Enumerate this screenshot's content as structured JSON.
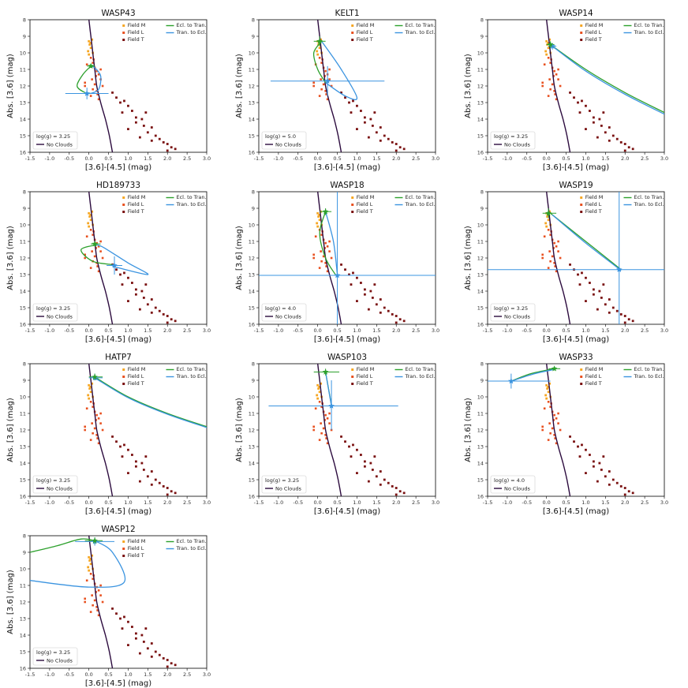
{
  "figure": {
    "xlabel": "[3.6]-[4.5] (mag)",
    "ylabel": "Abs. [3.6] (mag)",
    "legend_field_labels": [
      "Field M",
      "Field L",
      "Field T"
    ],
    "legend_track_labels": [
      "Ecl. to Tran.",
      "Tran. to Ecl."
    ],
    "no_clouds_label": "No Clouds",
    "colors": {
      "field_m": "#f5a623",
      "field_l": "#e8501f",
      "field_t": "#7a1010",
      "model": "#2b0a3d",
      "ecl_to_tran": "#2ca02c",
      "tran_to_ecl": "#3b94e0"
    }
  },
  "chart_data": [
    {
      "type": "scatter",
      "title": "WASP43",
      "logg_label": "log(g) = 3.25",
      "xlim": [
        -1.5,
        3.0
      ],
      "ylim": [
        16,
        8
      ],
      "xticks": [
        -1.5,
        -1.0,
        -0.5,
        0.0,
        0.5,
        1.0,
        1.5,
        2.0,
        2.5,
        3.0
      ],
      "yticks": [
        8,
        9,
        10,
        11,
        12,
        13,
        14,
        15,
        16
      ],
      "ecl": [
        [
          0.05,
          10.8
        ],
        [
          -0.15,
          11.3
        ],
        [
          -0.3,
          12.0
        ],
        [
          -0.1,
          12.4
        ],
        [
          0.05,
          12.45
        ]
      ],
      "tran": [
        [
          0.05,
          12.45
        ],
        [
          0.25,
          12.2
        ],
        [
          0.3,
          11.4
        ],
        [
          0.15,
          10.9
        ],
        [
          0.05,
          10.8
        ]
      ],
      "ecl_point": [
        0.05,
        10.8
      ],
      "tran_point": [
        -0.05,
        12.45
      ],
      "tran_err": {
        "x": [
          -0.6,
          0.5
        ],
        "y": [
          12.1,
          12.8
        ]
      },
      "ecl_err": {
        "x": [
          -0.05,
          0.15
        ],
        "y": [
          10.7,
          10.9
        ]
      }
    },
    {
      "type": "scatter",
      "title": "KELT1",
      "logg_label": "log(g) = 5.0",
      "xlim": [
        -1.5,
        3.0
      ],
      "ylim": [
        16,
        8
      ],
      "xticks": [
        -1.5,
        -1.0,
        -0.5,
        0.0,
        0.5,
        1.0,
        1.5,
        2.0,
        2.5,
        3.0
      ],
      "yticks": [
        8,
        9,
        10,
        11,
        12,
        13,
        14,
        15,
        16
      ],
      "ecl": [
        [
          0.1,
          9.3
        ],
        [
          -0.1,
          10.0
        ],
        [
          0.0,
          11.0
        ],
        [
          0.2,
          11.8
        ]
      ],
      "tran": [
        [
          0.2,
          11.8
        ],
        [
          0.7,
          12.6
        ],
        [
          1.0,
          12.7
        ],
        [
          0.6,
          11.0
        ],
        [
          0.1,
          9.3
        ]
      ],
      "ecl_point": [
        0.05,
        9.3
      ],
      "tran_point": [
        0.25,
        11.7
      ],
      "tran_err": {
        "x": [
          -1.2,
          1.7
        ],
        "y": [
          10.8,
          12.6
        ]
      },
      "ecl_err": {
        "x": [
          -0.1,
          0.2
        ],
        "y": [
          9.0,
          9.6
        ]
      }
    },
    {
      "type": "scatter",
      "title": "WASP14",
      "logg_label": "log(g) = 3.25",
      "xlim": [
        -1.5,
        3.0
      ],
      "ylim": [
        16,
        8
      ],
      "xticks": [
        -1.5,
        -1.0,
        -0.5,
        0.0,
        0.5,
        1.0,
        1.5,
        2.0,
        2.5,
        3.0
      ],
      "yticks": [
        8,
        9,
        10,
        11,
        12,
        13,
        14,
        15,
        16
      ],
      "ecl": [
        [
          0.1,
          9.5
        ],
        [
          1.0,
          11.0
        ],
        [
          2.0,
          12.4
        ],
        [
          3.0,
          13.6
        ]
      ],
      "tran": [
        [
          0.15,
          9.6
        ],
        [
          1.0,
          11.1
        ],
        [
          2.0,
          12.5
        ],
        [
          3.0,
          13.7
        ]
      ],
      "ecl_point": [
        0.1,
        9.5
      ],
      "tran_point": [
        0.15,
        9.6
      ],
      "tran_err": {
        "x": [
          0.05,
          0.25
        ],
        "y": [
          9.4,
          9.8
        ]
      },
      "ecl_err": {
        "x": [
          0.0,
          0.2
        ],
        "y": [
          9.3,
          9.7
        ]
      }
    },
    {
      "type": "scatter",
      "title": "HD189733",
      "logg_label": "log(g) = 3.25",
      "xlim": [
        -1.5,
        3.0
      ],
      "ylim": [
        16,
        8
      ],
      "xticks": [
        -1.5,
        -1.0,
        -0.5,
        0.0,
        0.5,
        1.0,
        1.5,
        2.0,
        2.5,
        3.0
      ],
      "yticks": [
        8,
        9,
        10,
        11,
        12,
        13,
        14,
        15,
        16
      ],
      "ecl": [
        [
          0.2,
          11.2
        ],
        [
          -0.2,
          11.5
        ],
        [
          0.1,
          12.2
        ],
        [
          0.6,
          12.4
        ]
      ],
      "tran": [
        [
          0.6,
          12.5
        ],
        [
          1.5,
          13.0
        ],
        [
          1.0,
          12.3
        ],
        [
          0.4,
          11.4
        ],
        [
          0.2,
          11.2
        ]
      ],
      "ecl_point": [
        0.15,
        11.15
      ],
      "tran_point": [
        0.65,
        12.45
      ],
      "tran_err": {
        "x": [
          0.45,
          0.85
        ],
        "y": [
          11.9,
          13.0
        ]
      },
      "ecl_err": {
        "x": [
          0.05,
          0.3
        ],
        "y": [
          11.0,
          11.3
        ]
      }
    },
    {
      "type": "scatter",
      "title": "WASP18",
      "logg_label": "log(g) = 4.0",
      "xlim": [
        -1.5,
        3.0
      ],
      "ylim": [
        16,
        8
      ],
      "xticks": [
        -1.5,
        -1.0,
        -0.5,
        0.0,
        0.5,
        1.0,
        1.5,
        2.0,
        2.5,
        3.0
      ],
      "yticks": [
        8,
        9,
        10,
        11,
        12,
        13,
        14,
        15,
        16
      ],
      "ecl": [
        [
          0.2,
          9.2
        ],
        [
          0.05,
          10.5
        ],
        [
          0.2,
          12.0
        ],
        [
          0.45,
          13.0
        ]
      ],
      "tran": [
        [
          0.5,
          13.0
        ],
        [
          0.4,
          11.0
        ],
        [
          0.2,
          9.2
        ]
      ],
      "ecl_point": [
        0.2,
        9.2
      ],
      "tran_point": [
        0.5,
        13.05
      ],
      "tran_err": {
        "x": [
          -1.5,
          3.0
        ],
        "y": [
          8.0,
          16.0
        ]
      },
      "ecl_err": {
        "x": [
          0.05,
          0.35
        ],
        "y": [
          9.0,
          9.4
        ]
      }
    },
    {
      "type": "scatter",
      "title": "WASP19",
      "logg_label": "log(g) = 3.25",
      "xlim": [
        -1.5,
        3.0
      ],
      "ylim": [
        16,
        8
      ],
      "xticks": [
        -1.5,
        -1.0,
        -0.5,
        0.0,
        0.5,
        1.0,
        1.5,
        2.0,
        2.5,
        3.0
      ],
      "yticks": [
        8,
        9,
        10,
        11,
        12,
        13,
        14,
        15,
        16
      ],
      "ecl": [
        [
          0.1,
          9.3
        ],
        [
          1.0,
          11.0
        ],
        [
          1.9,
          12.7
        ]
      ],
      "tran": [
        [
          0.15,
          9.4
        ],
        [
          1.0,
          11.1
        ],
        [
          1.9,
          12.75
        ]
      ],
      "ecl_point": [
        0.05,
        9.3
      ],
      "tran_point": [
        1.85,
        12.7
      ],
      "tran_err": {
        "x": [
          -1.5,
          3.0
        ],
        "y": [
          8.0,
          16.0
        ]
      },
      "ecl_err": {
        "x": [
          -0.1,
          0.25
        ],
        "y": [
          9.0,
          9.6
        ]
      }
    },
    {
      "type": "scatter",
      "title": "HATP7",
      "logg_label": "log(g) = 3.25",
      "xlim": [
        -1.5,
        3.0
      ],
      "ylim": [
        16,
        8
      ],
      "xticks": [
        -1.5,
        -1.0,
        -0.5,
        0.0,
        0.5,
        1.0,
        1.5,
        2.0,
        2.5,
        3.0
      ],
      "yticks": [
        8,
        9,
        10,
        11,
        12,
        13,
        14,
        15,
        16
      ],
      "ecl": [
        [
          0.15,
          8.8
        ],
        [
          1.0,
          10.0
        ],
        [
          2.0,
          11.0
        ],
        [
          3.0,
          11.8
        ]
      ],
      "tran": [
        [
          0.15,
          8.85
        ],
        [
          1.0,
          10.05
        ],
        [
          2.0,
          11.05
        ],
        [
          3.0,
          11.85
        ]
      ],
      "ecl_point": [
        0.15,
        8.8
      ],
      "tran_point": [
        0.15,
        8.85
      ],
      "tran_err": {
        "x": [
          0.0,
          0.35
        ],
        "y": [
          8.6,
          9.0
        ]
      },
      "ecl_err": {
        "x": [
          0.0,
          0.35
        ],
        "y": [
          8.6,
          9.0
        ]
      }
    },
    {
      "type": "scatter",
      "title": "WASP103",
      "logg_label": "log(g) = 3.25",
      "xlim": [
        -1.5,
        3.0
      ],
      "ylim": [
        16,
        8
      ],
      "xticks": [
        -1.5,
        -1.0,
        -0.5,
        0.0,
        0.5,
        1.0,
        1.5,
        2.0,
        2.5,
        3.0
      ],
      "yticks": [
        8,
        9,
        10,
        11,
        12,
        13,
        14,
        15,
        16
      ],
      "ecl": [
        [
          0.2,
          8.5
        ],
        [
          0.35,
          10.5
        ]
      ],
      "tran": [
        [
          0.35,
          10.55
        ],
        [
          0.2,
          8.5
        ]
      ],
      "ecl_point": [
        0.2,
        8.5
      ],
      "tran_point": [
        0.35,
        10.55
      ],
      "tran_err": {
        "x": [
          -1.25,
          2.05
        ],
        "y": [
          9.0,
          12.0
        ]
      },
      "ecl_err": {
        "x": [
          -0.1,
          0.55
        ],
        "y": [
          8.3,
          8.7
        ]
      }
    },
    {
      "type": "scatter",
      "title": "WASP33",
      "logg_label": "log(g) = 4.0",
      "xlim": [
        -1.5,
        3.0
      ],
      "ylim": [
        16,
        8
      ],
      "xticks": [
        -1.5,
        -1.0,
        -0.5,
        0.0,
        0.5,
        1.0,
        1.5,
        2.0,
        2.5,
        3.0
      ],
      "yticks": [
        8,
        9,
        10,
        11,
        12,
        13,
        14,
        15,
        16
      ],
      "ecl": [
        [
          0.2,
          8.3
        ],
        [
          -0.4,
          8.6
        ],
        [
          -0.9,
          9.05
        ]
      ],
      "tran": [
        [
          -0.9,
          9.05
        ],
        [
          -0.3,
          8.6
        ],
        [
          0.2,
          8.35
        ]
      ],
      "ecl_point": [
        0.2,
        8.3
      ],
      "tran_point": [
        -0.9,
        9.05
      ],
      "tran_err": {
        "x": [
          -1.5,
          0.1
        ],
        "y": [
          8.6,
          9.5
        ]
      },
      "ecl_err": {
        "x": [
          0.05,
          0.35
        ],
        "y": [
          8.2,
          8.4
        ]
      }
    },
    {
      "type": "scatter",
      "title": "WASP12",
      "logg_label": "log(g) = 3.25",
      "xlim": [
        -1.5,
        3.0
      ],
      "ylim": [
        16,
        8
      ],
      "xticks": [
        -1.5,
        -1.0,
        -0.5,
        0.0,
        0.5,
        1.0,
        1.5,
        2.0,
        2.5,
        3.0
      ],
      "yticks": [
        8,
        9,
        10,
        11,
        12,
        13,
        14,
        15,
        16
      ],
      "ecl": [
        [
          0.15,
          8.3
        ],
        [
          -0.2,
          8.2
        ],
        [
          -0.8,
          8.6
        ],
        [
          -1.5,
          9.0
        ]
      ],
      "tran": [
        [
          -1.5,
          10.7
        ],
        [
          0.0,
          11.1
        ],
        [
          0.9,
          10.8
        ],
        [
          0.6,
          9.0
        ],
        [
          0.15,
          8.3
        ]
      ],
      "ecl_point": [
        0.15,
        8.3
      ],
      "tran_point": [
        0.15,
        8.35
      ],
      "tran_err": {
        "x": [
          -0.35,
          0.65
        ],
        "y": [
          8.1,
          8.6
        ]
      },
      "ecl_err": {
        "x": [
          -0.1,
          0.35
        ],
        "y": [
          8.1,
          8.5
        ]
      }
    }
  ]
}
